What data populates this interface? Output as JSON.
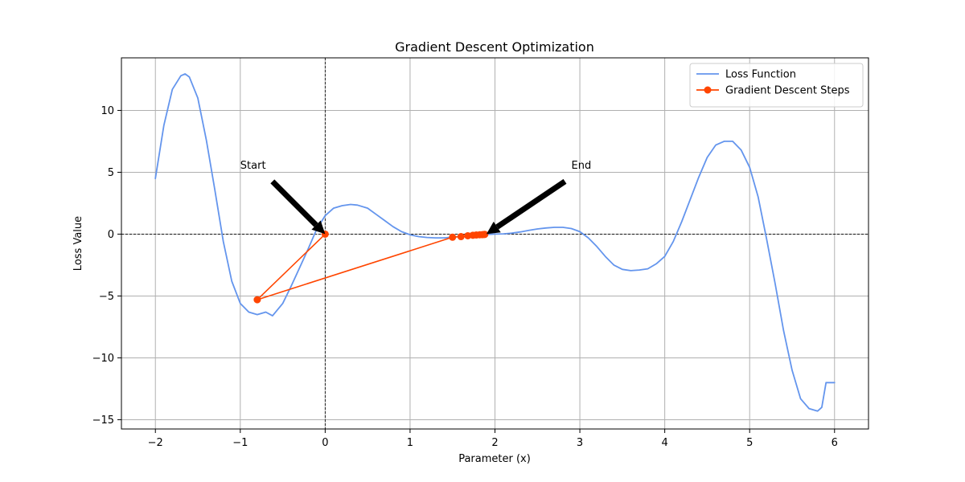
{
  "chart_data": {
    "type": "line",
    "title": "Gradient Descent Optimization",
    "xlabel": "Parameter (x)",
    "ylabel": "Loss Value",
    "xlim": [
      -2.4,
      6.4
    ],
    "ylim": [
      -15.75,
      14.25
    ],
    "x_ticks": [
      -2,
      -1,
      0,
      1,
      2,
      3,
      4,
      5,
      6
    ],
    "x_tick_labels": [
      "−2",
      "−1",
      "0",
      "1",
      "2",
      "3",
      "4",
      "5",
      "6"
    ],
    "y_ticks": [
      -15,
      -10,
      -5,
      0,
      5,
      10
    ],
    "y_tick_labels": [
      "−15",
      "−10",
      "−5",
      "0",
      "5",
      "10"
    ],
    "grid": true,
    "reference_lines": {
      "x": 0,
      "y": 0
    },
    "legend_position": "top-right",
    "series": [
      {
        "name": "Loss Function",
        "style": "line",
        "color": "#6495ED",
        "x": [
          -2.0,
          -1.9,
          -1.8,
          -1.7,
          -1.65,
          -1.6,
          -1.5,
          -1.4,
          -1.3,
          -1.2,
          -1.1,
          -1.0,
          -0.9,
          -0.8,
          -0.7,
          -0.62,
          -0.5,
          -0.4,
          -0.3,
          -0.2,
          -0.1,
          0.0,
          0.1,
          0.2,
          0.3,
          0.38,
          0.5,
          0.6,
          0.7,
          0.8,
          0.9,
          1.0,
          1.1,
          1.2,
          1.3,
          1.4,
          1.5,
          1.6,
          1.7,
          1.8,
          1.9,
          2.0,
          2.1,
          2.2,
          2.3,
          2.4,
          2.5,
          2.6,
          2.7,
          2.8,
          2.9,
          3.0,
          3.1,
          3.2,
          3.3,
          3.4,
          3.5,
          3.6,
          3.7,
          3.8,
          3.9,
          4.0,
          4.1,
          4.2,
          4.3,
          4.4,
          4.5,
          4.6,
          4.7,
          4.8,
          4.9,
          5.0,
          5.1,
          5.2,
          5.3,
          5.4,
          5.5,
          5.6,
          5.7,
          5.8,
          5.85,
          5.9,
          6.0
        ],
        "y": [
          4.5,
          8.8,
          11.7,
          12.8,
          12.95,
          12.7,
          11.0,
          7.6,
          3.6,
          -0.6,
          -3.8,
          -5.6,
          -6.3,
          -6.5,
          -6.3,
          -6.6,
          -5.6,
          -4.2,
          -2.7,
          -1.2,
          0.4,
          1.5,
          2.1,
          2.3,
          2.4,
          2.35,
          2.1,
          1.6,
          1.1,
          0.6,
          0.2,
          -0.05,
          -0.2,
          -0.27,
          -0.3,
          -0.3,
          -0.25,
          -0.17,
          -0.1,
          -0.05,
          -0.02,
          0.0,
          0.02,
          0.08,
          0.18,
          0.3,
          0.42,
          0.5,
          0.55,
          0.55,
          0.45,
          0.2,
          -0.3,
          -1.0,
          -1.8,
          -2.5,
          -2.85,
          -2.95,
          -2.9,
          -2.8,
          -2.4,
          -1.8,
          -0.6,
          1.0,
          2.8,
          4.6,
          6.2,
          7.2,
          7.5,
          7.5,
          6.8,
          5.4,
          3.0,
          -0.4,
          -4.0,
          -7.8,
          -11.0,
          -13.3,
          -14.1,
          -14.3,
          -14.0,
          -12.0,
          -12.0
        ]
      },
      {
        "name": "Gradient Descent Steps",
        "style": "line-markers",
        "color": "#FF4500",
        "x": [
          0.0,
          -0.8,
          1.5,
          1.6,
          1.68,
          1.74,
          1.78,
          1.82,
          1.85,
          1.87,
          1.88
        ],
        "y": [
          0.0,
          -5.3,
          -0.25,
          -0.2,
          -0.13,
          -0.09,
          -0.07,
          -0.05,
          -0.04,
          -0.03,
          -0.02
        ]
      }
    ],
    "annotations": [
      {
        "text": "Start",
        "text_x": -1.0,
        "text_y": 5.3,
        "arrow_to_x": 0.0,
        "arrow_to_y": 0.0
      },
      {
        "text": "End",
        "text_x": 2.9,
        "text_y": 5.3,
        "arrow_to_x": 1.9,
        "arrow_to_y": 0.0
      }
    ]
  }
}
